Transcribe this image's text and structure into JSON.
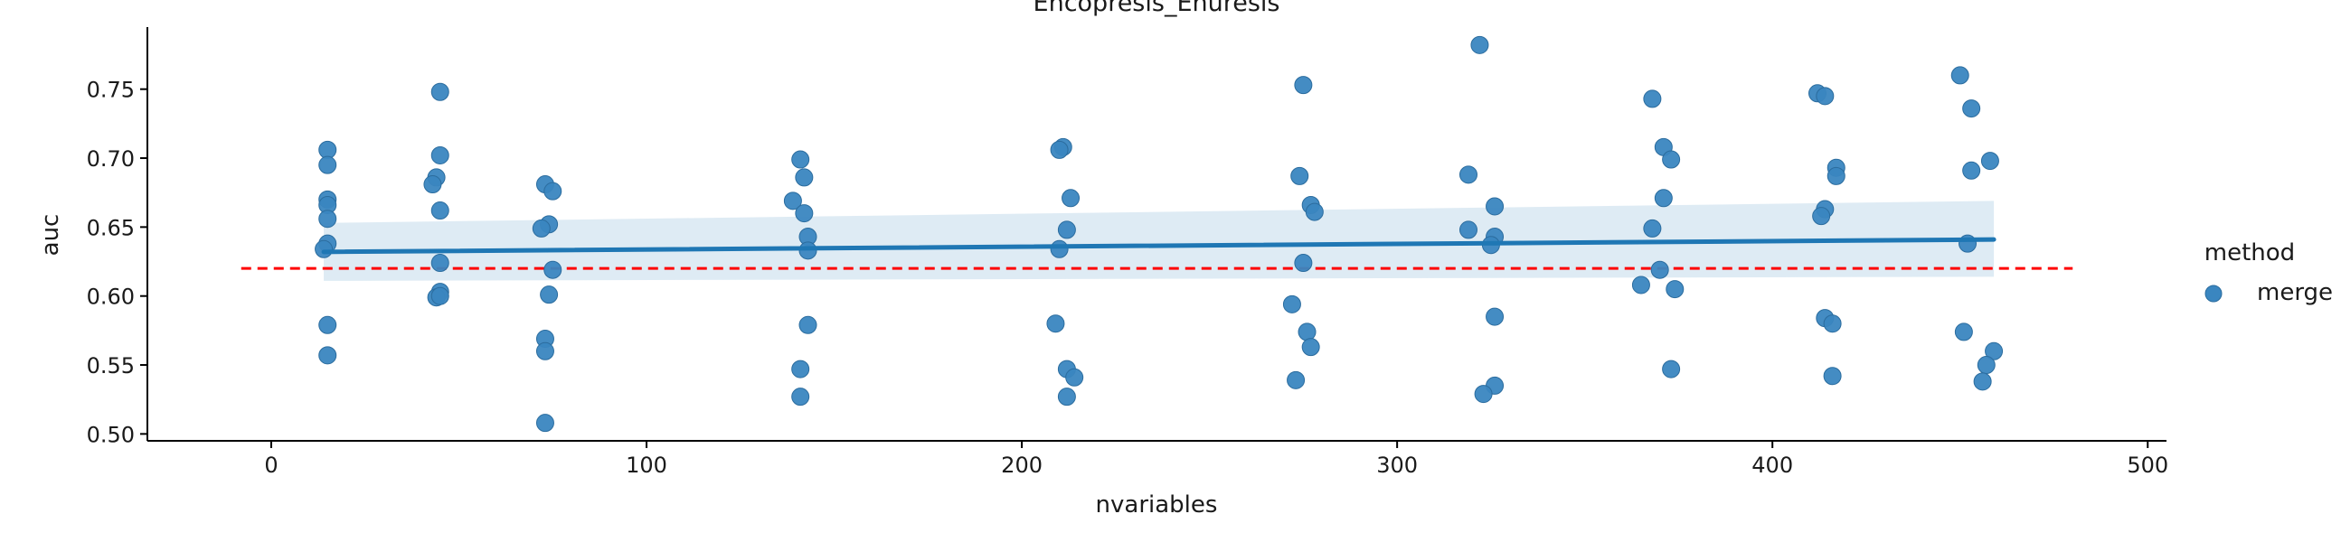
{
  "chart_data": {
    "type": "scatter",
    "title": "Encopresis_Enuresis",
    "xlabel": "nvariables",
    "ylabel": "auc",
    "xlim": [
      -33,
      505
    ],
    "ylim": [
      0.495,
      0.795
    ],
    "xticks": [
      0,
      100,
      200,
      300,
      400,
      500
    ],
    "yticks": [
      0.5,
      0.55,
      0.6,
      0.65,
      0.7,
      0.75
    ],
    "legend": {
      "title": "method",
      "position": "right",
      "entries": [
        {
          "label": "merge",
          "color": "#3a86c0"
        }
      ]
    },
    "series": [
      {
        "name": "merge",
        "color": "#3a86c0",
        "points": [
          {
            "x": 15,
            "y": 0.706
          },
          {
            "x": 15,
            "y": 0.695
          },
          {
            "x": 15,
            "y": 0.67
          },
          {
            "x": 15,
            "y": 0.666
          },
          {
            "x": 15,
            "y": 0.656
          },
          {
            "x": 15,
            "y": 0.638
          },
          {
            "x": 14,
            "y": 0.634
          },
          {
            "x": 15,
            "y": 0.579
          },
          {
            "x": 15,
            "y": 0.557
          },
          {
            "x": 45,
            "y": 0.748
          },
          {
            "x": 45,
            "y": 0.702
          },
          {
            "x": 44,
            "y": 0.686
          },
          {
            "x": 43,
            "y": 0.681
          },
          {
            "x": 45,
            "y": 0.662
          },
          {
            "x": 45,
            "y": 0.624
          },
          {
            "x": 45,
            "y": 0.603
          },
          {
            "x": 44,
            "y": 0.599
          },
          {
            "x": 45,
            "y": 0.6
          },
          {
            "x": 73,
            "y": 0.681
          },
          {
            "x": 75,
            "y": 0.676
          },
          {
            "x": 74,
            "y": 0.652
          },
          {
            "x": 72,
            "y": 0.649
          },
          {
            "x": 75,
            "y": 0.619
          },
          {
            "x": 74,
            "y": 0.601
          },
          {
            "x": 73,
            "y": 0.569
          },
          {
            "x": 73,
            "y": 0.56
          },
          {
            "x": 73,
            "y": 0.508
          },
          {
            "x": 141,
            "y": 0.699
          },
          {
            "x": 142,
            "y": 0.686
          },
          {
            "x": 139,
            "y": 0.669
          },
          {
            "x": 142,
            "y": 0.66
          },
          {
            "x": 143,
            "y": 0.643
          },
          {
            "x": 143,
            "y": 0.633
          },
          {
            "x": 143,
            "y": 0.579
          },
          {
            "x": 141,
            "y": 0.547
          },
          {
            "x": 141,
            "y": 0.527
          },
          {
            "x": 211,
            "y": 0.708
          },
          {
            "x": 210,
            "y": 0.706
          },
          {
            "x": 213,
            "y": 0.671
          },
          {
            "x": 212,
            "y": 0.648
          },
          {
            "x": 210,
            "y": 0.634
          },
          {
            "x": 209,
            "y": 0.58
          },
          {
            "x": 212,
            "y": 0.547
          },
          {
            "x": 214,
            "y": 0.541
          },
          {
            "x": 212,
            "y": 0.527
          },
          {
            "x": 275,
            "y": 0.753
          },
          {
            "x": 274,
            "y": 0.687
          },
          {
            "x": 277,
            "y": 0.666
          },
          {
            "x": 278,
            "y": 0.661
          },
          {
            "x": 275,
            "y": 0.624
          },
          {
            "x": 272,
            "y": 0.594
          },
          {
            "x": 276,
            "y": 0.574
          },
          {
            "x": 277,
            "y": 0.563
          },
          {
            "x": 273,
            "y": 0.539
          },
          {
            "x": 322,
            "y": 0.782
          },
          {
            "x": 319,
            "y": 0.688
          },
          {
            "x": 326,
            "y": 0.665
          },
          {
            "x": 319,
            "y": 0.648
          },
          {
            "x": 326,
            "y": 0.643
          },
          {
            "x": 325,
            "y": 0.637
          },
          {
            "x": 326,
            "y": 0.585
          },
          {
            "x": 326,
            "y": 0.535
          },
          {
            "x": 323,
            "y": 0.529
          },
          {
            "x": 368,
            "y": 0.743
          },
          {
            "x": 371,
            "y": 0.708
          },
          {
            "x": 373,
            "y": 0.699
          },
          {
            "x": 371,
            "y": 0.671
          },
          {
            "x": 368,
            "y": 0.649
          },
          {
            "x": 370,
            "y": 0.619
          },
          {
            "x": 365,
            "y": 0.608
          },
          {
            "x": 374,
            "y": 0.605
          },
          {
            "x": 373,
            "y": 0.547
          },
          {
            "x": 412,
            "y": 0.747
          },
          {
            "x": 414,
            "y": 0.745
          },
          {
            "x": 417,
            "y": 0.693
          },
          {
            "x": 417,
            "y": 0.687
          },
          {
            "x": 414,
            "y": 0.663
          },
          {
            "x": 413,
            "y": 0.658
          },
          {
            "x": 414,
            "y": 0.584
          },
          {
            "x": 416,
            "y": 0.58
          },
          {
            "x": 416,
            "y": 0.542
          },
          {
            "x": 450,
            "y": 0.76
          },
          {
            "x": 453,
            "y": 0.736
          },
          {
            "x": 458,
            "y": 0.698
          },
          {
            "x": 453,
            "y": 0.691
          },
          {
            "x": 452,
            "y": 0.638
          },
          {
            "x": 451,
            "y": 0.574
          },
          {
            "x": 459,
            "y": 0.56
          },
          {
            "x": 457,
            "y": 0.55
          },
          {
            "x": 456,
            "y": 0.538
          }
        ]
      }
    ],
    "regression": {
      "x_start": 14,
      "x_end": 459,
      "y_start": 0.632,
      "y_end": 0.641,
      "ci_start": [
        0.611,
        0.653
      ],
      "ci_end": [
        0.614,
        0.669
      ],
      "color": "#1f77b4"
    },
    "reference_line": {
      "y": 0.62,
      "x_start": -8,
      "x_end": 480,
      "color": "#ff0000",
      "style": "dashed"
    }
  }
}
